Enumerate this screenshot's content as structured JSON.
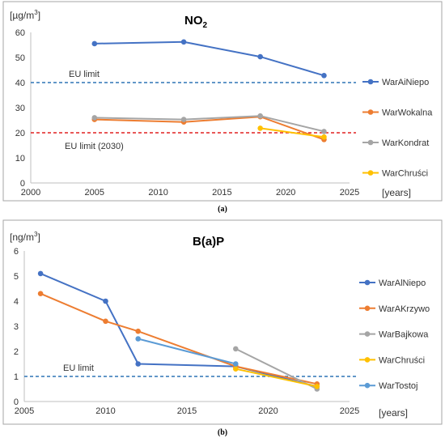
{
  "chart_data": [
    {
      "type": "line",
      "panel_label": "(a)",
      "title": "NO",
      "title_subscript": "2",
      "ylabel": "[µg/m",
      "ylabel_superscript": "3",
      "ylabel_end": "]",
      "xlabel": "[years]",
      "xlim": [
        2000,
        2025
      ],
      "ylim": [
        0,
        60
      ],
      "xticks": [
        "2000",
        "2005",
        "2010",
        "2015",
        "2020",
        "2025"
      ],
      "yticks": [
        "0",
        "10",
        "20",
        "30",
        "40",
        "50",
        "60"
      ],
      "grid": false,
      "legend": "right",
      "series": [
        {
          "name": "WarAiNiepo",
          "color": "#4472C4",
          "x": [
            2005,
            2012,
            2018,
            2023
          ],
          "y": [
            55.5,
            56.2,
            50.3,
            42.8
          ]
        },
        {
          "name": "WarWokalna",
          "color": "#ED7D31",
          "x": [
            2005,
            2012,
            2018,
            2023
          ],
          "y": [
            25.3,
            24.3,
            26.4,
            17.3
          ]
        },
        {
          "name": "WarKondrat",
          "color": "#A5A5A5",
          "x": [
            2005,
            2012,
            2018,
            2023
          ],
          "y": [
            26.0,
            25.3,
            26.7,
            20.5
          ]
        },
        {
          "name": "WarChruści",
          "color": "#FFC000",
          "x": [
            2018,
            2023
          ],
          "y": [
            21.8,
            18.3
          ]
        }
      ],
      "reference_lines": [
        {
          "label": "EU limit",
          "y": 40,
          "color": "#2E75B6"
        },
        {
          "label": "EU limit (2030)",
          "y": 20,
          "color": "#E02020"
        }
      ]
    },
    {
      "type": "line",
      "panel_label": "(b)",
      "title": "B(a)P",
      "ylabel": "[ng/m",
      "ylabel_superscript": "3",
      "ylabel_end": "]",
      "xlabel": "[years]",
      "xlim": [
        2005,
        2025
      ],
      "ylim": [
        0,
        6
      ],
      "xticks": [
        "2005",
        "2010",
        "2015",
        "2020",
        "2025"
      ],
      "yticks": [
        "0",
        "1",
        "2",
        "3",
        "4",
        "5",
        "6"
      ],
      "grid": false,
      "legend": "right",
      "series": [
        {
          "name": "WarAlNiepo",
          "color": "#4472C4",
          "x": [
            2006,
            2010,
            2012,
            2018,
            2023
          ],
          "y": [
            5.1,
            4.0,
            1.5,
            1.4,
            0.6
          ]
        },
        {
          "name": "WarAKrzywo",
          "color": "#ED7D31",
          "x": [
            2006,
            2010,
            2012,
            2018,
            2023
          ],
          "y": [
            4.3,
            3.2,
            2.8,
            1.4,
            0.7
          ]
        },
        {
          "name": "WarBajkowa",
          "color": "#A5A5A5",
          "x": [
            2018,
            2023
          ],
          "y": [
            2.1,
            0.5
          ]
        },
        {
          "name": "WarChruści",
          "color": "#FFC000",
          "x": [
            2018,
            2023
          ],
          "y": [
            1.3,
            0.6
          ]
        },
        {
          "name": "WarTostoj",
          "color": "#5B9BD5",
          "x": [
            2012,
            2018
          ],
          "y": [
            2.5,
            1.5
          ]
        }
      ],
      "reference_lines": [
        {
          "label": "EU limit",
          "y": 1,
          "color": "#2E75B6"
        }
      ]
    }
  ]
}
